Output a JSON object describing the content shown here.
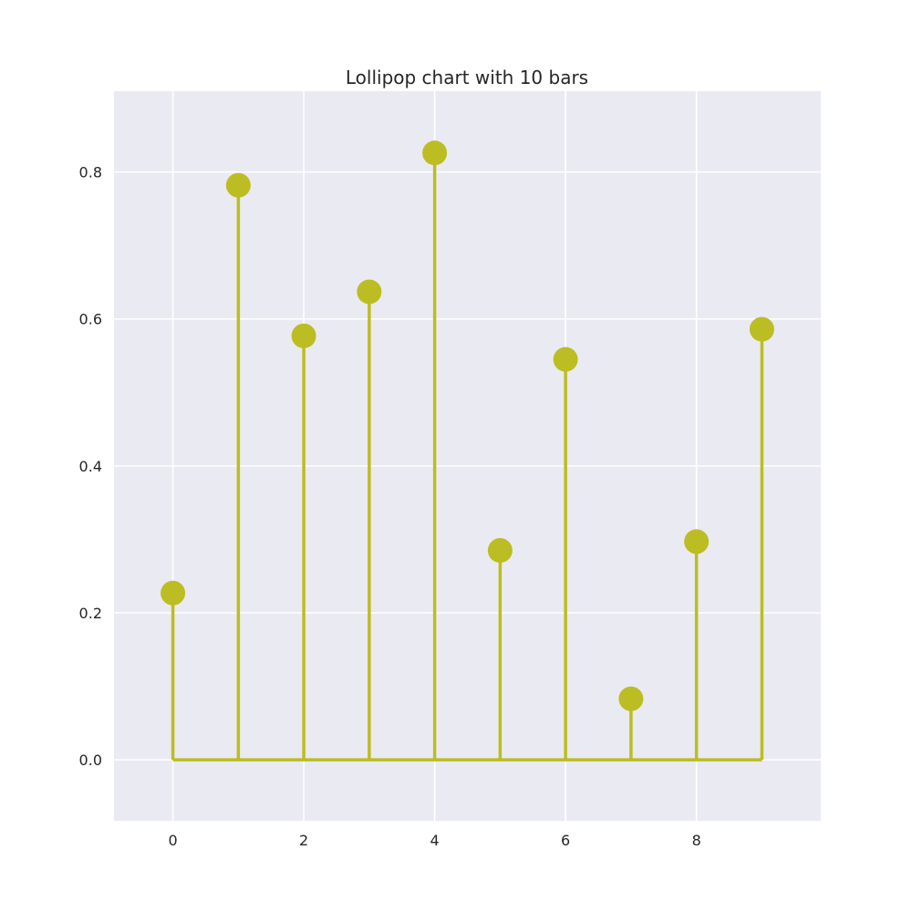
{
  "chart_data": {
    "type": "lollipop",
    "title": "Lollipop chart with 10 bars",
    "xlabel": "",
    "ylabel": "",
    "x": [
      0,
      1,
      2,
      3,
      4,
      5,
      6,
      7,
      8,
      9
    ],
    "values": [
      0.227,
      0.782,
      0.577,
      0.637,
      0.826,
      0.285,
      0.545,
      0.083,
      0.297,
      0.586
    ],
    "xlim": [
      -0.9,
      9.9
    ],
    "ylim": [
      -0.083,
      0.91
    ],
    "xticks": [
      0,
      2,
      4,
      6,
      8
    ],
    "xtick_labels": [
      "0",
      "2",
      "4",
      "6",
      "8"
    ],
    "yticks": [
      0.0,
      0.2,
      0.4,
      0.6,
      0.8
    ],
    "ytick_labels": [
      "0.0",
      "0.2",
      "0.4",
      "0.6",
      "0.8"
    ],
    "baseline": 0.0,
    "grid": true,
    "colors": {
      "marker": "#bcbd22",
      "stem": "#bcbd22",
      "plot_background": "#eaeaf2",
      "grid": "#ffffff",
      "text": "#262626"
    }
  }
}
